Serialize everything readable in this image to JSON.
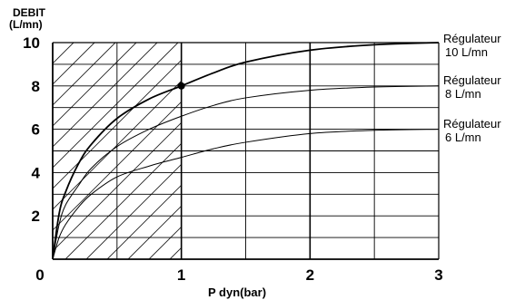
{
  "chart_data": {
    "type": "line",
    "ylabel_lines": [
      "DEBIT",
      "(L/mn)"
    ],
    "xlabel": "P dyn(bar)",
    "xlim": [
      0,
      3
    ],
    "ylim": [
      0,
      10
    ],
    "x_ticks": [
      "0",
      "1",
      "2",
      "3"
    ],
    "y_ticks": [
      "2",
      "4",
      "6",
      "8",
      "10"
    ],
    "grid": true,
    "hatched_region": {
      "x_from": 0,
      "x_to": 1
    },
    "series": [
      {
        "name_lines": [
          "Régulateur",
          "10 L/mn"
        ],
        "x": [
          0,
          0.05,
          0.1,
          0.2,
          0.3,
          0.5,
          0.75,
          1.0,
          1.25,
          1.5,
          2.0,
          2.5,
          3.0
        ],
        "y": [
          0,
          2.1,
          3.1,
          4.4,
          5.3,
          6.5,
          7.4,
          8.0,
          8.6,
          9.1,
          9.65,
          9.9,
          10.0
        ]
      },
      {
        "name_lines": [
          "Régulateur",
          "8 L/mn"
        ],
        "x": [
          0,
          0.05,
          0.1,
          0.2,
          0.3,
          0.5,
          0.75,
          1.0,
          1.25,
          1.5,
          2.0,
          2.5,
          3.0
        ],
        "y": [
          0,
          1.6,
          2.5,
          3.4,
          4.2,
          5.2,
          6.0,
          6.6,
          7.1,
          7.45,
          7.8,
          7.95,
          8.0
        ]
      },
      {
        "name_lines": [
          "Régulateur",
          "6 L/mn"
        ],
        "x": [
          0,
          0.05,
          0.1,
          0.2,
          0.3,
          0.5,
          0.75,
          1.0,
          1.25,
          1.5,
          2.0,
          2.5,
          3.0
        ],
        "y": [
          0,
          1.0,
          1.6,
          2.4,
          3.0,
          3.8,
          4.3,
          4.7,
          5.1,
          5.4,
          5.8,
          5.95,
          6.0
        ]
      }
    ],
    "marked_point": {
      "x": 1,
      "y": 8
    }
  }
}
